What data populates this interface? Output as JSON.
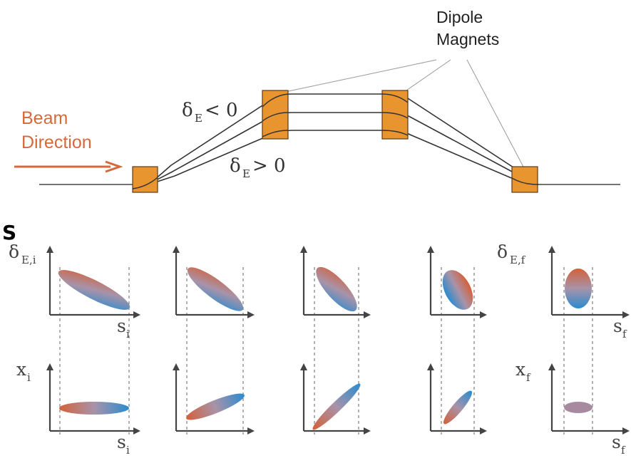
{
  "top": {
    "beam_label_line1": "Beam",
    "beam_label_line2": "Direction",
    "dipole_label_line1": "Dipole",
    "dipole_label_line2": "Magnets",
    "delta_neg_main": "δ",
    "delta_neg_sub": "E",
    "delta_neg_rel": "< 0",
    "delta_pos_main": "δ",
    "delta_pos_sub": "E",
    "delta_pos_rel": "> 0"
  },
  "bottom": {
    "panel_letter": "S",
    "delta_i_main": "δ",
    "delta_i_sub": "E,i",
    "delta_f_main": "δ",
    "delta_f_sub": "E,f",
    "s_i_main": "s",
    "s_i_sub": "i",
    "s_f_main": "s",
    "s_f_sub": "f",
    "x_i_main": "x",
    "x_i_sub": "i",
    "x_f_main": "x",
    "x_f_sub": "f",
    "s_i2_main": "s",
    "s_i2_sub": "i",
    "s_f2_main": "s",
    "s_f2_sub": "f"
  },
  "colors": {
    "magnet_fill": "#e8942f",
    "magnet_stroke": "#5a3a1a",
    "beam_arrow": "#d46a3c",
    "gradient_top": "#d4603a",
    "gradient_mid": "#a893a8",
    "gradient_bottom": "#2a8bd0",
    "final_x_color": "#a88aa0"
  }
}
